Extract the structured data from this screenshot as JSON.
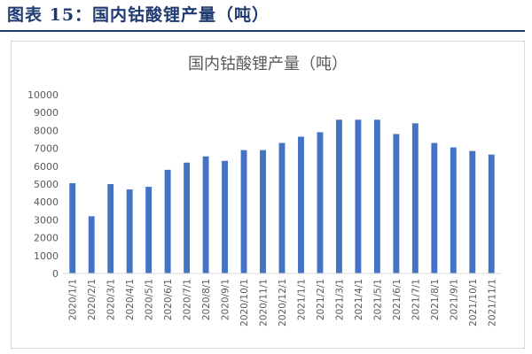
{
  "header": {
    "figure_title": "图表 15：国内钴酸锂产量（吨）"
  },
  "chart_data": {
    "type": "bar",
    "title": "国内钴酸锂产量（吨）",
    "xlabel": "",
    "ylabel": "",
    "ylim": [
      0,
      10000
    ],
    "yticks": [
      0,
      1000,
      2000,
      3000,
      4000,
      5000,
      6000,
      7000,
      8000,
      9000,
      10000
    ],
    "grid": false,
    "legend": "none",
    "bar_color": "#4472c4",
    "categories": [
      "2020/1/1",
      "2020/2/1",
      "2020/3/1",
      "2020/4/1",
      "2020/5/1",
      "2020/6/1",
      "2020/7/1",
      "2020/8/1",
      "2020/9/1",
      "2020/10/1",
      "2020/11/1",
      "2020/12/1",
      "2021/1/1",
      "2021/2/1",
      "2021/3/1",
      "2021/4/1",
      "2021/5/1",
      "2021/6/1",
      "2021/7/1",
      "2021/8/1",
      "2021/9/1",
      "2021/10/1",
      "2021/11/1"
    ],
    "values": [
      5050,
      3200,
      5000,
      4700,
      4850,
      5800,
      6200,
      6550,
      6300,
      6900,
      6900,
      7300,
      7650,
      7900,
      8600,
      8600,
      8600,
      7800,
      8400,
      7300,
      7050,
      6850,
      6650
    ]
  }
}
